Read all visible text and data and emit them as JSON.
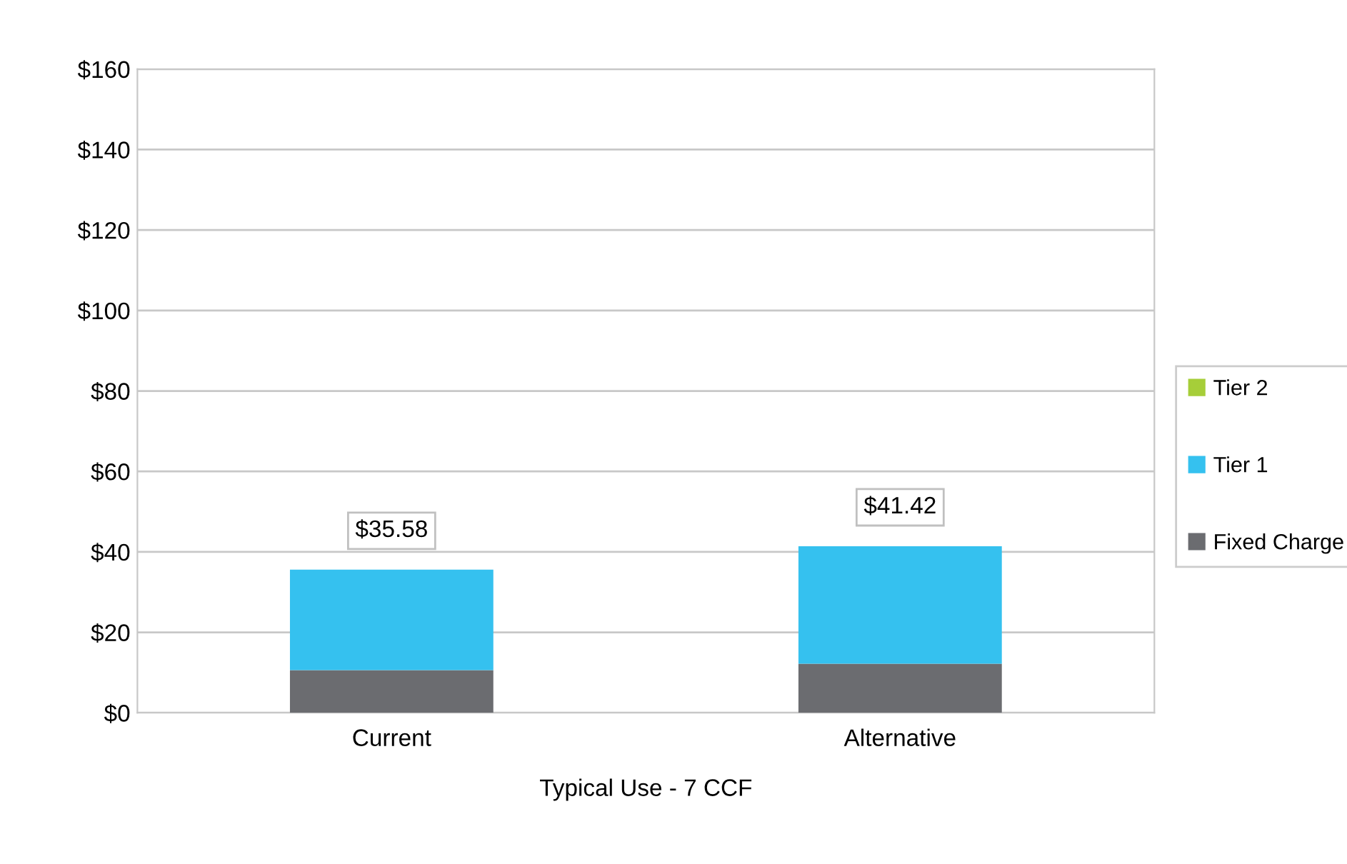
{
  "chart_data": {
    "type": "bar",
    "stacked": true,
    "xlabel": "Typical Use - 7 CCF",
    "categories": [
      "Current",
      "Alternative"
    ],
    "series": [
      {
        "name": "Fixed Charge",
        "color": "#6b6c70",
        "values": [
          10.6,
          12.2
        ]
      },
      {
        "name": "Tier 1",
        "color": "#35c1ef",
        "values": [
          24.98,
          29.22
        ]
      },
      {
        "name": "Tier 2",
        "color": "#a6ce39",
        "values": [
          0,
          0
        ]
      }
    ],
    "totals": [
      "$35.58",
      "$41.42"
    ],
    "ylim": [
      0,
      160
    ],
    "yticks": [
      {
        "value": 0,
        "label": "$0"
      },
      {
        "value": 20,
        "label": "$20"
      },
      {
        "value": 40,
        "label": "$40"
      },
      {
        "value": 60,
        "label": "$60"
      },
      {
        "value": 80,
        "label": "$80"
      },
      {
        "value": 100,
        "label": "$100"
      },
      {
        "value": 120,
        "label": "$120"
      },
      {
        "value": 140,
        "label": "$140"
      },
      {
        "value": 160,
        "label": "$160"
      }
    ],
    "grid": "y",
    "legend": "right"
  }
}
